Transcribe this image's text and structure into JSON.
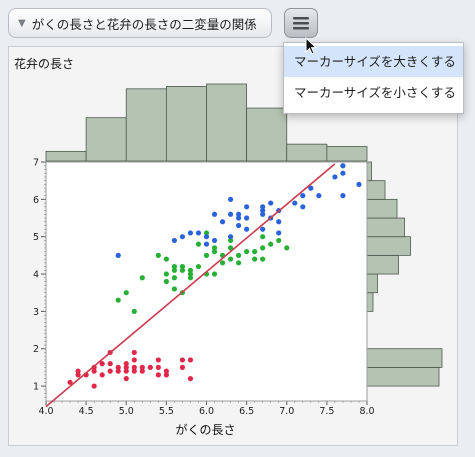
{
  "window": {
    "title": "がくの長さと花弁の長さの二変量の関係"
  },
  "menu": {
    "items": [
      {
        "label": "マーカーサイズを大きくする",
        "hovered": true
      },
      {
        "label": "マーカーサイズを小さくする",
        "hovered": false
      }
    ]
  },
  "colors": {
    "histogram_fill": "#b5c3b3",
    "fit_line": "#cc3a4e",
    "setosa_points": "#e0284a",
    "versicolor_points": "#27b035",
    "virginica_points": "#2b63da",
    "menu_hover": "#d4e5fb"
  },
  "chart_data": {
    "type": "scatter",
    "xlabel": "がくの長さ",
    "ylabel": "花弁の長さ",
    "xlim": [
      4.0,
      8.0
    ],
    "ylim": [
      0.6,
      7.0
    ],
    "xticks": [
      "4.0",
      "4.5",
      "5.0",
      "5.5",
      "6.0",
      "6.5",
      "7.0",
      "7.5",
      "8.0"
    ],
    "yticks": [
      "1",
      "2",
      "3",
      "4",
      "5",
      "6",
      "7"
    ],
    "fit_line": {
      "x": [
        4.0,
        7.6
      ],
      "y": [
        0.45,
        6.95
      ]
    },
    "top_histogram": {
      "bins": [
        4.0,
        4.5,
        5.0,
        5.5,
        6.0,
        6.5,
        7.0,
        7.5,
        8.0
      ],
      "counts": [
        4,
        18,
        30,
        31,
        32,
        22,
        7,
        6
      ]
    },
    "right_histogram": {
      "bins": [
        1.0,
        1.5,
        2.0,
        2.5,
        3.0,
        3.5,
        4.0,
        4.5,
        5.0,
        5.5,
        6.0,
        6.5,
        7.0
      ],
      "counts": [
        48,
        50,
        0,
        0,
        4,
        7,
        21,
        29,
        25,
        20,
        12,
        3
      ]
    },
    "series": [
      {
        "points": [
          [
            4.3,
            1.1
          ],
          [
            4.4,
            1.3
          ],
          [
            4.4,
            1.4
          ],
          [
            4.5,
            1.3
          ],
          [
            4.6,
            1.0
          ],
          [
            4.6,
            1.4
          ],
          [
            4.6,
            1.5
          ],
          [
            4.7,
            1.3
          ],
          [
            4.7,
            1.6
          ],
          [
            4.8,
            1.4
          ],
          [
            4.8,
            1.6
          ],
          [
            4.8,
            1.9
          ],
          [
            4.9,
            1.4
          ],
          [
            4.9,
            1.5
          ],
          [
            5.0,
            1.2
          ],
          [
            5.0,
            1.4
          ],
          [
            5.0,
            1.5
          ],
          [
            5.0,
            1.6
          ],
          [
            5.1,
            1.4
          ],
          [
            5.1,
            1.5
          ],
          [
            5.1,
            1.7
          ],
          [
            5.1,
            1.9
          ],
          [
            5.2,
            1.4
          ],
          [
            5.2,
            1.5
          ],
          [
            5.3,
            1.5
          ],
          [
            5.4,
            1.3
          ],
          [
            5.4,
            1.5
          ],
          [
            5.4,
            1.7
          ],
          [
            5.5,
            1.3
          ],
          [
            5.5,
            1.4
          ],
          [
            5.7,
            1.5
          ],
          [
            5.7,
            1.7
          ],
          [
            5.8,
            1.2
          ],
          [
            5.8,
            1.7
          ]
        ]
      },
      {
        "points": [
          [
            4.9,
            3.3
          ],
          [
            5.0,
            3.5
          ],
          [
            5.1,
            3.0
          ],
          [
            5.2,
            3.9
          ],
          [
            5.4,
            4.5
          ],
          [
            5.5,
            3.8
          ],
          [
            5.5,
            4.0
          ],
          [
            5.5,
            4.4
          ],
          [
            5.6,
            3.6
          ],
          [
            5.6,
            3.9
          ],
          [
            5.6,
            4.1
          ],
          [
            5.6,
            4.2
          ],
          [
            5.7,
            3.5
          ],
          [
            5.7,
            4.1
          ],
          [
            5.7,
            4.2
          ],
          [
            5.8,
            3.9
          ],
          [
            5.8,
            4.0
          ],
          [
            5.8,
            4.1
          ],
          [
            5.9,
            4.2
          ],
          [
            5.9,
            4.8
          ],
          [
            6.0,
            4.0
          ],
          [
            6.0,
            4.5
          ],
          [
            6.0,
            5.1
          ],
          [
            6.1,
            4.0
          ],
          [
            6.1,
            4.6
          ],
          [
            6.1,
            4.7
          ],
          [
            6.2,
            4.3
          ],
          [
            6.2,
            4.5
          ],
          [
            6.3,
            4.4
          ],
          [
            6.3,
            4.7
          ],
          [
            6.3,
            4.9
          ],
          [
            6.4,
            4.3
          ],
          [
            6.4,
            4.5
          ],
          [
            6.5,
            4.6
          ],
          [
            6.6,
            4.4
          ],
          [
            6.6,
            4.6
          ],
          [
            6.7,
            4.4
          ],
          [
            6.7,
            4.7
          ],
          [
            6.7,
            5.0
          ],
          [
            6.8,
            4.8
          ],
          [
            6.9,
            4.9
          ],
          [
            7.0,
            4.7
          ]
        ]
      },
      {
        "points": [
          [
            4.9,
            4.5
          ],
          [
            5.6,
            4.9
          ],
          [
            5.7,
            5.0
          ],
          [
            5.8,
            5.1
          ],
          [
            5.9,
            5.1
          ],
          [
            6.0,
            4.8
          ],
          [
            6.0,
            5.0
          ],
          [
            6.1,
            4.9
          ],
          [
            6.1,
            5.6
          ],
          [
            6.2,
            5.4
          ],
          [
            6.3,
            5.0
          ],
          [
            6.3,
            5.6
          ],
          [
            6.3,
            6.0
          ],
          [
            6.4,
            5.3
          ],
          [
            6.4,
            5.5
          ],
          [
            6.4,
            5.6
          ],
          [
            6.5,
            5.2
          ],
          [
            6.5,
            5.5
          ],
          [
            6.5,
            5.8
          ],
          [
            6.7,
            5.2
          ],
          [
            6.7,
            5.6
          ],
          [
            6.7,
            5.7
          ],
          [
            6.7,
            5.8
          ],
          [
            6.8,
            5.5
          ],
          [
            6.8,
            5.9
          ],
          [
            6.9,
            5.1
          ],
          [
            6.9,
            5.4
          ],
          [
            6.9,
            5.7
          ],
          [
            7.1,
            5.9
          ],
          [
            7.2,
            5.8
          ],
          [
            7.2,
            6.1
          ],
          [
            7.3,
            6.3
          ],
          [
            7.4,
            6.1
          ],
          [
            7.6,
            6.6
          ],
          [
            7.7,
            6.1
          ],
          [
            7.7,
            6.7
          ],
          [
            7.7,
            6.9
          ],
          [
            7.9,
            6.4
          ]
        ]
      }
    ]
  }
}
